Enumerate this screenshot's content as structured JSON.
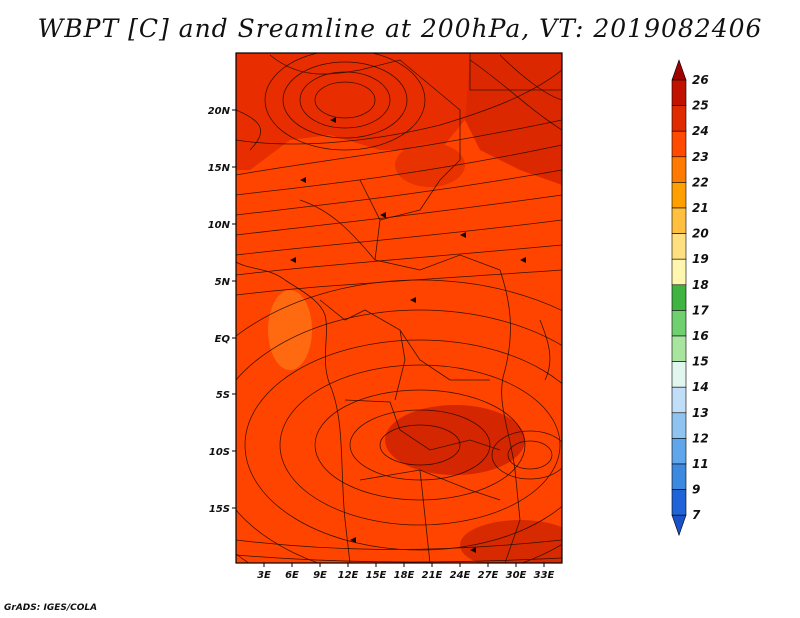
{
  "title": "WBPT [C] and Sreamline at 200hPa, VT: 2019082406",
  "credit": "GrADS: IGES/COLA",
  "map": {
    "variable": "Wet-bulb potential temperature",
    "units": "C",
    "level": "200hPa",
    "valid_time": "2019082406",
    "lon_range": [
      0,
      35
    ],
    "lat_range": [
      -20,
      24
    ],
    "x_ticks": [
      "3E",
      "6E",
      "9E",
      "12E",
      "15E",
      "18E",
      "21E",
      "24E",
      "27E",
      "30E",
      "33E"
    ],
    "x_tick_values": [
      3,
      6,
      9,
      12,
      15,
      18,
      21,
      24,
      27,
      30,
      33
    ],
    "y_ticks": [
      "20N",
      "15N",
      "10N",
      "5N",
      "EQ",
      "5S",
      "10S",
      "15S"
    ],
    "y_tick_values": [
      20,
      15,
      10,
      5,
      0,
      -5,
      -10,
      -15
    ],
    "background_color": "#ff4400",
    "dominant_range": "23-25"
  },
  "colorbar": {
    "labels": [
      "26",
      "25",
      "24",
      "23",
      "22",
      "21",
      "20",
      "19",
      "18",
      "17",
      "16",
      "15",
      "14",
      "13",
      "12",
      "11",
      "9",
      "7"
    ],
    "colors": [
      "#a00000",
      "#c11200",
      "#e02a00",
      "#ff4a00",
      "#ff7a00",
      "#ffa000",
      "#ffc040",
      "#ffe080",
      "#fff6b0",
      "#40b440",
      "#70d070",
      "#a8e6a0",
      "#e0f6ee",
      "#c0def8",
      "#90c4f0",
      "#60a6ea",
      "#3c8ae0",
      "#2064d8",
      "#1a50c8"
    ]
  }
}
